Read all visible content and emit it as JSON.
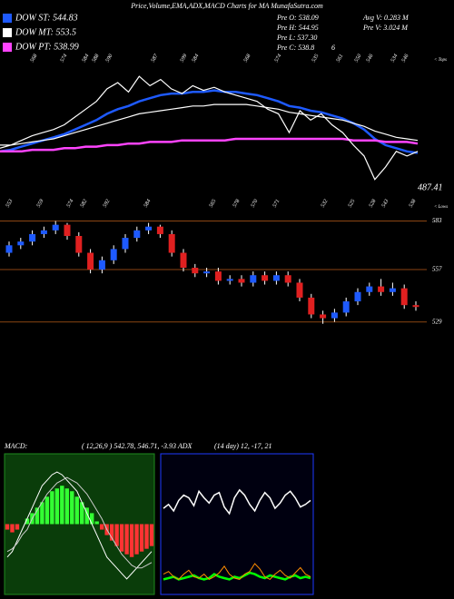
{
  "chart_data": [
    {
      "type": "line",
      "title": "Price,Volume,EMA,ADX,MACD Charts for MA MunafaSutra.com",
      "info": [
        "Pre O: 538.09",
        "Avg V: 0.283 M",
        "Pre H: 544.95",
        "Pre V: 3.024 M",
        "Pre L: 537.30",
        "Pre C: 538.8",
        "6"
      ],
      "annotation": "487.41",
      "tops_label": "< Tops",
      "lows_label": "< Lows",
      "tops": [
        568,
        574,
        584,
        588,
        590,
        587,
        599,
        584,
        568,
        574,
        535,
        561,
        550,
        546,
        534,
        546
      ],
      "lows": [
        553,
        559,
        574,
        582,
        592,
        584,
        565,
        578,
        570,
        571,
        532,
        525,
        528,
        543,
        538
      ],
      "ylim": [
        520,
        610
      ],
      "color": "#ffffff",
      "values": [
        550,
        552,
        555,
        558,
        560,
        562,
        565,
        570,
        575,
        580,
        588,
        592,
        586,
        596,
        590,
        594,
        588,
        585,
        590,
        587,
        589,
        586,
        584,
        582,
        580,
        575,
        572,
        560,
        574,
        568,
        572,
        565,
        560,
        552,
        545,
        530,
        538,
        548,
        545,
        548
      ],
      "series": [
        {
          "name": "DOW ST: 544.83",
          "color": "#1e5aff",
          "values": [
            548,
            549,
            551,
            553,
            555,
            557,
            559,
            562,
            565,
            568,
            572,
            575,
            577,
            580,
            582,
            584,
            585,
            585,
            586,
            586,
            587,
            586,
            586,
            585,
            584,
            582,
            580,
            577,
            576,
            574,
            573,
            571,
            569,
            566,
            562,
            556,
            552,
            550,
            548,
            547
          ]
        },
        {
          "name": "DOW MT: 553.5",
          "color": "#ffffff",
          "values": [
            552,
            552,
            553,
            554,
            555,
            556,
            558,
            560,
            562,
            564,
            566,
            568,
            570,
            572,
            573,
            574,
            575,
            576,
            577,
            577,
            578,
            578,
            578,
            578,
            577,
            576,
            575,
            573,
            572,
            571,
            570,
            569,
            568,
            566,
            564,
            561,
            559,
            557,
            556,
            555
          ]
        },
        {
          "name": "DOW PT: 538.99",
          "color": "#ff44ff",
          "values": [
            548,
            548,
            548,
            549,
            549,
            549,
            550,
            550,
            551,
            551,
            552,
            552,
            553,
            553,
            554,
            554,
            554,
            555,
            555,
            555,
            555,
            555,
            556,
            556,
            556,
            556,
            556,
            556,
            556,
            556,
            556,
            556,
            556,
            555,
            555,
            555,
            554,
            554,
            554,
            553
          ]
        }
      ]
    },
    {
      "type": "candlestick",
      "ylim": [
        524,
        592
      ],
      "yticks": [
        583,
        557,
        529
      ],
      "up_color": "#1e5aff",
      "down_color": "#e02020",
      "level_color": "#8b4513",
      "open": [
        566,
        570,
        572,
        576,
        578,
        581,
        575,
        566,
        557,
        562,
        568,
        574,
        578,
        580,
        576,
        566,
        558,
        555,
        556,
        551,
        552,
        550,
        554,
        551,
        554,
        550,
        542,
        533,
        531,
        534,
        540,
        545,
        548,
        545,
        547,
        538
      ],
      "high": [
        572,
        574,
        578,
        580,
        583,
        582,
        577,
        568,
        564,
        570,
        576,
        580,
        582,
        581,
        578,
        568,
        560,
        558,
        558,
        554,
        554,
        556,
        556,
        556,
        556,
        552,
        544,
        535,
        536,
        542,
        547,
        550,
        552,
        550,
        549,
        540
      ],
      "low": [
        564,
        568,
        570,
        574,
        576,
        573,
        564,
        555,
        555,
        560,
        566,
        572,
        576,
        574,
        564,
        556,
        553,
        553,
        549,
        549,
        548,
        548,
        549,
        549,
        548,
        540,
        531,
        528,
        529,
        532,
        538,
        543,
        543,
        543,
        536,
        535
      ],
      "close": [
        570,
        572,
        576,
        578,
        581,
        575,
        566,
        557,
        562,
        568,
        574,
        578,
        580,
        576,
        566,
        558,
        555,
        556,
        551,
        552,
        550,
        554,
        551,
        554,
        550,
        542,
        533,
        531,
        534,
        540,
        545,
        548,
        545,
        547,
        538,
        537
      ]
    },
    {
      "type": "macd",
      "title": "MACD:",
      "subtitle": "( 12,26,9 ) 542.78, 546.71, -3.93 ADX",
      "ylim": [
        -12,
        12
      ],
      "background": "#0a3d0a",
      "histogram": [
        -1,
        -1.5,
        -1,
        0,
        1,
        2,
        3,
        4,
        5,
        6,
        6.5,
        7,
        6.5,
        6,
        5,
        4,
        3,
        2,
        0.5,
        -1,
        -2,
        -3,
        -4,
        -5,
        -5.5,
        -6,
        -5.5,
        -5,
        -4.5,
        -4
      ],
      "pos_color": "#33ff33",
      "neg_color": "#ff3333",
      "series": [
        {
          "color": "#ffffff",
          "values": [
            -6,
            -5,
            -3,
            -1,
            1,
            3,
            5,
            7,
            8,
            9,
            9.5,
            9,
            8,
            7,
            6,
            4,
            2,
            0,
            -2,
            -4,
            -6,
            -7,
            -8,
            -9,
            -10,
            -9,
            -8,
            -7,
            -6,
            -5
          ]
        },
        {
          "color": "#cccccc",
          "values": [
            -5,
            -4.5,
            -3.5,
            -2,
            -1,
            1,
            2.5,
            4,
            5.5,
            6.5,
            7.5,
            8,
            8.5,
            8,
            7.5,
            6.5,
            5.5,
            4,
            2.5,
            1,
            -1,
            -2.5,
            -4,
            -5.5,
            -6.5,
            -7.5,
            -8,
            -8,
            -7.5,
            -7
          ]
        }
      ]
    },
    {
      "type": "line",
      "title": "(14 day) 12, -17, 21",
      "ylim": [
        0,
        100
      ],
      "background": "#000010",
      "series": [
        {
          "color": "#ffffff",
          "values": [
            62,
            65,
            60,
            68,
            72,
            70,
            64,
            75,
            70,
            66,
            72,
            74,
            63,
            58,
            70,
            76,
            72,
            65,
            60,
            68,
            74,
            70,
            62,
            66,
            72,
            75,
            70,
            63,
            65,
            68
          ]
        },
        {
          "color": "#00ff00",
          "values": [
            8,
            9,
            10,
            8,
            9,
            10,
            11,
            9,
            8,
            9,
            12,
            10,
            9,
            8,
            10,
            9,
            11,
            13,
            12,
            10,
            9,
            11,
            10,
            9,
            8,
            10,
            11,
            9,
            10,
            9
          ]
        },
        {
          "color": "#ff8c00",
          "values": [
            12,
            14,
            10,
            8,
            12,
            15,
            10,
            9,
            12,
            8,
            10,
            13,
            18,
            12,
            9,
            8,
            12,
            14,
            20,
            16,
            10,
            8,
            12,
            15,
            11,
            9,
            13,
            17,
            12,
            10
          ]
        }
      ]
    }
  ]
}
